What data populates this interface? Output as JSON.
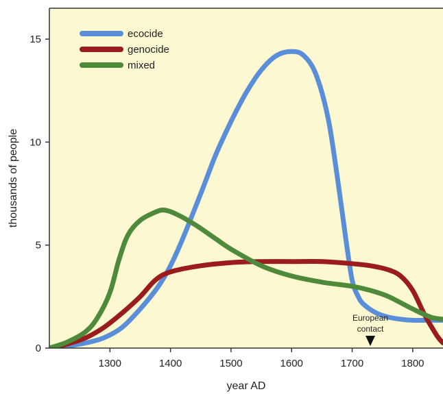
{
  "chart_data": {
    "type": "line",
    "title": "",
    "xlabel": "year AD",
    "ylabel": "thousands of people",
    "xlim": [
      1200,
      1850
    ],
    "ylim": [
      0,
      16.5
    ],
    "xticks": [
      1300,
      1400,
      1500,
      1600,
      1700,
      1800
    ],
    "yticks": [
      0,
      5,
      10,
      15
    ],
    "grid": false,
    "legend": "top-left",
    "background": "#fbf8d2",
    "series": [
      {
        "name": "ecocide",
        "color": "#5b8ed8",
        "x": [
          1200,
          1230,
          1260,
          1290,
          1320,
          1350,
          1380,
          1400,
          1420,
          1450,
          1475,
          1500,
          1525,
          1550,
          1575,
          1600,
          1620,
          1640,
          1660,
          1675,
          1690,
          1700,
          1710,
          1720,
          1740,
          1760,
          1780,
          1800,
          1820,
          1850
        ],
        "values": [
          0,
          0.1,
          0.25,
          0.5,
          1.0,
          1.9,
          3.0,
          4.0,
          5.3,
          7.5,
          9.4,
          11.0,
          12.4,
          13.5,
          14.2,
          14.4,
          14.2,
          13.3,
          11.2,
          8.4,
          5.2,
          3.3,
          2.5,
          2.1,
          1.7,
          1.5,
          1.4,
          1.35,
          1.35,
          1.35
        ]
      },
      {
        "name": "genocide",
        "color": "#9b1c1c",
        "x": [
          1200,
          1230,
          1260,
          1290,
          1320,
          1350,
          1375,
          1400,
          1450,
          1500,
          1550,
          1600,
          1650,
          1700,
          1730,
          1760,
          1780,
          1800,
          1820,
          1840,
          1850
        ],
        "values": [
          0,
          0.2,
          0.5,
          1.0,
          1.7,
          2.5,
          3.3,
          3.7,
          4.0,
          4.15,
          4.2,
          4.2,
          4.2,
          4.1,
          4.0,
          3.8,
          3.5,
          2.8,
          1.6,
          0.6,
          0.25
        ]
      },
      {
        "name": "mixed",
        "color": "#4f8a3a",
        "x": [
          1200,
          1230,
          1260,
          1280,
          1300,
          1315,
          1330,
          1350,
          1375,
          1390,
          1410,
          1440,
          1475,
          1500,
          1550,
          1600,
          1650,
          1700,
          1730,
          1760,
          1800,
          1830,
          1850
        ],
        "values": [
          0,
          0.3,
          0.8,
          1.5,
          2.7,
          4.3,
          5.5,
          6.2,
          6.6,
          6.7,
          6.5,
          6.0,
          5.3,
          4.8,
          4.0,
          3.5,
          3.2,
          3.0,
          2.8,
          2.5,
          1.9,
          1.5,
          1.4
        ]
      }
    ],
    "annotations": [
      {
        "text_line1": "European",
        "text_line2": "contact",
        "x": 1730,
        "marker": "down-triangle"
      }
    ]
  }
}
